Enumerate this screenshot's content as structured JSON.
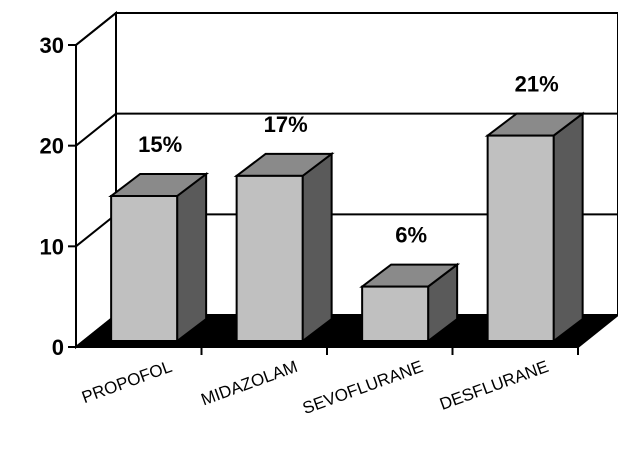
{
  "chart_data": {
    "type": "bar",
    "categories": [
      "PROPOFOL",
      "MIDAZOLAM",
      "SEVOFLURANE",
      "DESFLURANE"
    ],
    "values": [
      15,
      17,
      6,
      21
    ],
    "data_labels": [
      "15%",
      "17%",
      "6%",
      "21%"
    ],
    "yticks": [
      "0",
      "10",
      "20",
      "30"
    ],
    "ylim": [
      0,
      30
    ],
    "grid": true,
    "style": "3d",
    "colors": {
      "bar_front": "#c0c0c0",
      "bar_top": "#8a8a8a",
      "bar_side": "#5a5a5a",
      "floor": "#000000",
      "wall": "#ffffff"
    }
  }
}
